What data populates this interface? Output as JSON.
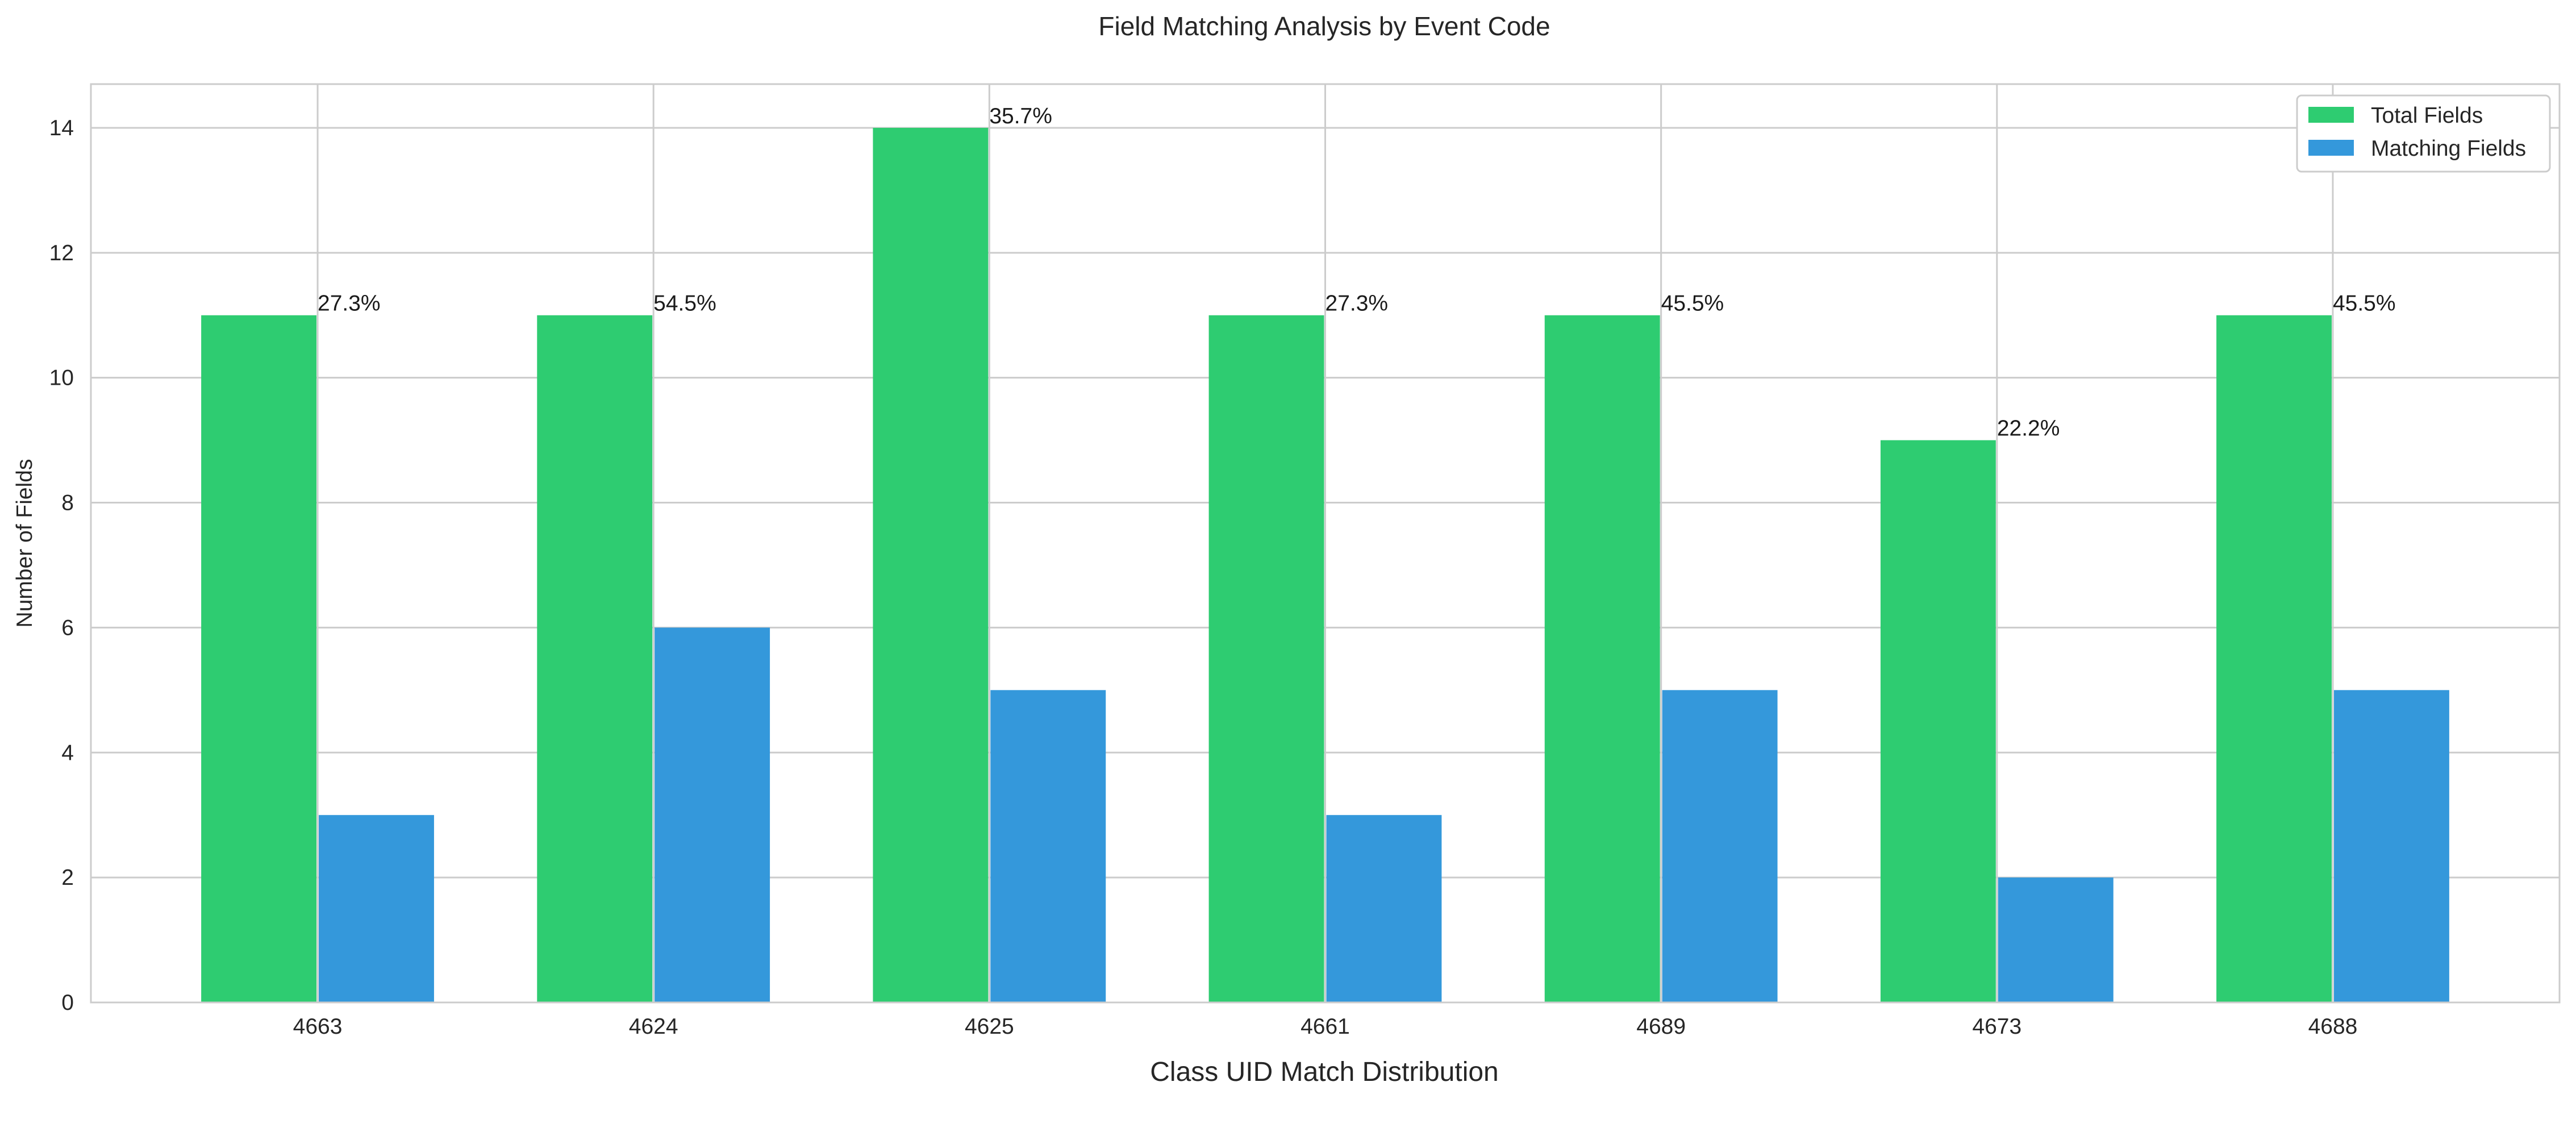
{
  "chart_data": {
    "type": "bar",
    "title": "Field Matching Analysis by Event Code",
    "xlabel": "Class UID Match Distribution",
    "ylabel": "Number of Fields",
    "categories": [
      "4663",
      "4624",
      "4625",
      "4661",
      "4689",
      "4673",
      "4688"
    ],
    "series": [
      {
        "name": "Total Fields",
        "values": [
          11,
          11,
          14,
          11,
          11,
          9,
          11
        ],
        "color": "#2ecc71"
      },
      {
        "name": "Matching Fields",
        "values": [
          3,
          6,
          5,
          3,
          5,
          2,
          5
        ],
        "color": "#3498db"
      }
    ],
    "data_labels": [
      "27.3%",
      "54.5%",
      "35.7%",
      "27.3%",
      "45.5%",
      "22.2%",
      "45.5%"
    ],
    "ylim": [
      0,
      14.7
    ],
    "yticks": [
      0,
      2,
      4,
      6,
      8,
      10,
      12,
      14
    ],
    "grid": true,
    "legend_position": "top-right"
  }
}
